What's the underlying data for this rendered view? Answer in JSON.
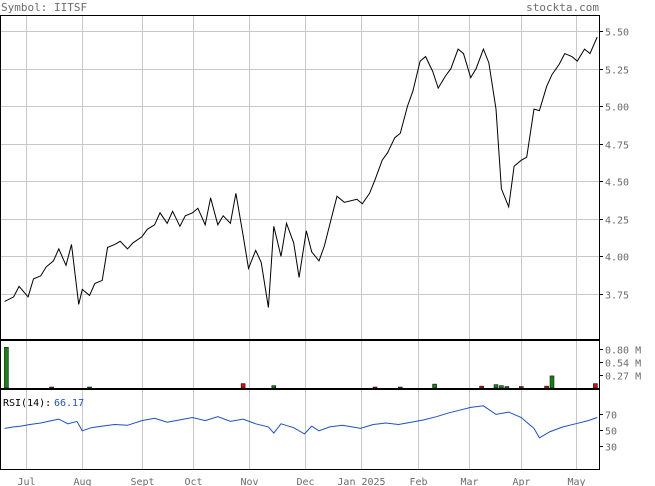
{
  "header": {
    "symbol_label": "Symbol: IITSF",
    "source": "stockta.com"
  },
  "colors": {
    "price_line": "#000000",
    "rsi_line": "#1f4fbf",
    "volume_up": "#1a7f1a",
    "volume_down": "#cc1111",
    "grid": "#c8c8c8",
    "axis_text": "#6b6b6b",
    "rsi_value": "#1f4fbf"
  },
  "chart_data": [
    {
      "id": "price",
      "type": "line",
      "title": "Symbol: IITSF",
      "xlabel": "",
      "ylabel": "",
      "ylim": [
        3.45,
        5.6
      ],
      "yticks": [
        "5.50",
        "5.25",
        "5.00",
        "4.75",
        "4.50",
        "4.25",
        "4.00",
        "3.75"
      ],
      "months": [
        "Jul",
        "Aug",
        "Sept",
        "Oct",
        "Nov",
        "Dec",
        "Jan 2025",
        "Feb",
        "Mar",
        "Apr",
        "May"
      ],
      "grid": true,
      "x": [
        "2024-06-19",
        "2024-06-24",
        "2024-06-27",
        "2024-07-02",
        "2024-07-05",
        "2024-07-09",
        "2024-07-12",
        "2024-07-16",
        "2024-07-19",
        "2024-07-23",
        "2024-07-26",
        "2024-07-30",
        "2024-08-01",
        "2024-08-05",
        "2024-08-08",
        "2024-08-12",
        "2024-08-15",
        "2024-08-19",
        "2024-08-22",
        "2024-08-26",
        "2024-08-29",
        "2024-09-03",
        "2024-09-06",
        "2024-09-10",
        "2024-09-13",
        "2024-09-17",
        "2024-09-20",
        "2024-09-24",
        "2024-09-27",
        "2024-10-01",
        "2024-10-04",
        "2024-10-08",
        "2024-10-11",
        "2024-10-15",
        "2024-10-18",
        "2024-10-22",
        "2024-10-25",
        "2024-10-29",
        "2024-11-01",
        "2024-11-05",
        "2024-11-08",
        "2024-11-12",
        "2024-11-15",
        "2024-11-19",
        "2024-11-22",
        "2024-11-26",
        "2024-11-29",
        "2024-12-03",
        "2024-12-06",
        "2024-12-10",
        "2024-12-13",
        "2024-12-17",
        "2024-12-20",
        "2024-12-24",
        "2024-12-31",
        "2025-01-03",
        "2025-01-07",
        "2025-01-10",
        "2025-01-14",
        "2025-01-17",
        "2025-01-21",
        "2025-01-24",
        "2025-01-28",
        "2025-01-31",
        "2025-02-04",
        "2025-02-07",
        "2025-02-11",
        "2025-02-14",
        "2025-02-18",
        "2025-02-21",
        "2025-02-25",
        "2025-02-28",
        "2025-03-04",
        "2025-03-07",
        "2025-03-11",
        "2025-03-14",
        "2025-03-18",
        "2025-03-21",
        "2025-03-25",
        "2025-03-28",
        "2025-04-01",
        "2025-04-04",
        "2025-04-08",
        "2025-04-11",
        "2025-04-15",
        "2025-04-18",
        "2025-04-22",
        "2025-04-25",
        "2025-04-29",
        "2025-05-02",
        "2025-05-06",
        "2025-05-09",
        "2025-05-13"
      ],
      "values": [
        3.7,
        3.73,
        3.8,
        3.73,
        3.85,
        3.87,
        3.93,
        3.97,
        4.05,
        3.94,
        4.08,
        3.68,
        3.78,
        3.74,
        3.82,
        3.84,
        4.06,
        4.08,
        4.1,
        4.05,
        4.09,
        4.13,
        4.18,
        4.21,
        4.29,
        4.22,
        4.3,
        4.2,
        4.27,
        4.29,
        4.32,
        4.21,
        4.39,
        4.21,
        4.27,
        4.22,
        4.42,
        4.14,
        3.92,
        4.04,
        3.96,
        3.66,
        4.2,
        4.0,
        4.22,
        4.09,
        3.86,
        4.17,
        4.03,
        3.97,
        4.07,
        4.26,
        4.4,
        4.36,
        4.38,
        4.35,
        4.42,
        4.51,
        4.64,
        4.69,
        4.79,
        4.82,
        5.0,
        5.1,
        5.3,
        5.33,
        5.23,
        5.12,
        5.2,
        5.25,
        5.38,
        5.35,
        5.19,
        5.25,
        5.38,
        5.29,
        4.98,
        4.45,
        4.33,
        4.6,
        4.64,
        4.66,
        4.98,
        4.97,
        5.13,
        5.21,
        5.28,
        5.35,
        5.33,
        5.3,
        5.38,
        5.35,
        5.46
      ]
    },
    {
      "id": "volume",
      "type": "bar",
      "title": "",
      "ylim": [
        0,
        0.95
      ],
      "ytick_labels": [
        "0.80 M",
        "0.54 M",
        "0.27 M"
      ],
      "yticks": [
        0.8,
        0.54,
        0.27
      ],
      "bars": [
        {
          "x": "2024-06-20",
          "value": 0.84,
          "color": "up"
        },
        {
          "x": "2024-07-15",
          "value": 0.02,
          "color": "down"
        },
        {
          "x": "2024-08-05",
          "value": 0.02,
          "color": "up"
        },
        {
          "x": "2024-10-29",
          "value": 0.09,
          "color": "down"
        },
        {
          "x": "2024-11-15",
          "value": 0.05,
          "color": "up"
        },
        {
          "x": "2025-01-10",
          "value": 0.02,
          "color": "down"
        },
        {
          "x": "2025-01-24",
          "value": 0.02,
          "color": "up"
        },
        {
          "x": "2025-02-12",
          "value": 0.08,
          "color": "up"
        },
        {
          "x": "2025-03-10",
          "value": 0.04,
          "color": "down"
        },
        {
          "x": "2025-03-18",
          "value": 0.07,
          "color": "up"
        },
        {
          "x": "2025-03-21",
          "value": 0.05,
          "color": "up"
        },
        {
          "x": "2025-03-24",
          "value": 0.03,
          "color": "up"
        },
        {
          "x": "2025-04-01",
          "value": 0.03,
          "color": "down"
        },
        {
          "x": "2025-04-15",
          "value": 0.04,
          "color": "down"
        },
        {
          "x": "2025-04-18",
          "value": 0.25,
          "color": "up"
        },
        {
          "x": "2025-05-12",
          "value": 0.09,
          "color": "down"
        }
      ]
    },
    {
      "id": "rsi",
      "type": "line",
      "title": "RSI(14):",
      "value_label": "66.17",
      "ylim": [
        0,
        100
      ],
      "yticks": [
        70,
        50,
        30
      ],
      "x": [
        "2024-06-19",
        "2024-06-24",
        "2024-06-28",
        "2024-07-03",
        "2024-07-09",
        "2024-07-15",
        "2024-07-19",
        "2024-07-24",
        "2024-07-29",
        "2024-08-01",
        "2024-08-06",
        "2024-08-12",
        "2024-08-19",
        "2024-08-26",
        "2024-09-03",
        "2024-09-10",
        "2024-09-17",
        "2024-09-24",
        "2024-10-01",
        "2024-10-08",
        "2024-10-15",
        "2024-10-22",
        "2024-10-29",
        "2024-11-05",
        "2024-11-12",
        "2024-11-15",
        "2024-11-19",
        "2024-11-26",
        "2024-12-02",
        "2024-12-06",
        "2024-12-10",
        "2024-12-16",
        "2024-12-23",
        "2025-01-02",
        "2025-01-09",
        "2025-01-16",
        "2025-01-23",
        "2025-01-30",
        "2025-02-06",
        "2025-02-13",
        "2025-02-20",
        "2025-02-27",
        "2025-03-04",
        "2025-03-11",
        "2025-03-18",
        "2025-03-25",
        "2025-04-01",
        "2025-04-04",
        "2025-04-08",
        "2025-04-11",
        "2025-04-17",
        "2025-04-24",
        "2025-05-01",
        "2025-05-08",
        "2025-05-13"
      ],
      "values": [
        52,
        54,
        55,
        57,
        59,
        62,
        64,
        58,
        61,
        49,
        53,
        55,
        57,
        56,
        62,
        65,
        60,
        63,
        66,
        62,
        67,
        61,
        64,
        58,
        54,
        46,
        58,
        53,
        45,
        55,
        49,
        54,
        56,
        52,
        57,
        59,
        57,
        60,
        63,
        67,
        72,
        76,
        79,
        81,
        70,
        73,
        66,
        60,
        52,
        40,
        48,
        54,
        58,
        62,
        66
      ]
    }
  ]
}
